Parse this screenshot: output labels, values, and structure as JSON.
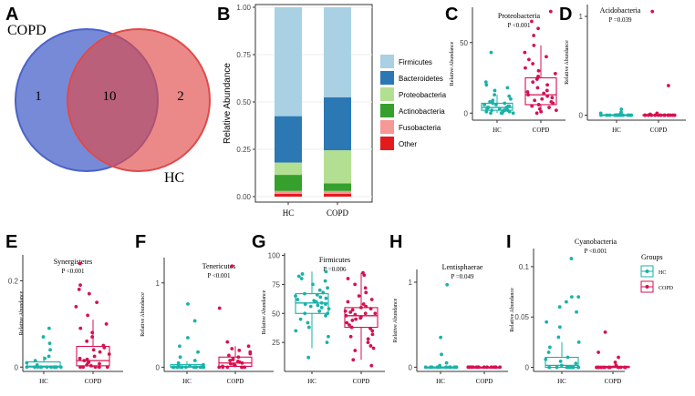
{
  "chart_data": [
    {
      "id": "A",
      "type": "venn",
      "sets": [
        {
          "label": "COPD",
          "color": "#4a63c9"
        },
        {
          "label": "HC",
          "color": "#e04a4a"
        }
      ],
      "counts": {
        "copd_only": "1",
        "shared": "10",
        "hc_only": "2"
      }
    },
    {
      "id": "B",
      "type": "stacked_bar",
      "ylabel": "Relative Abundance",
      "yticks": [
        "0.00",
        "0.25",
        "0.50",
        "0.75",
        "1.00"
      ],
      "ylim": [
        0,
        1
      ],
      "categories": [
        "HC",
        "COPD"
      ],
      "series": [
        {
          "name": "Firmicutes",
          "color": "#a9d0e3",
          "values": [
            0.575,
            0.475
          ]
        },
        {
          "name": "Bacteroidetes",
          "color": "#2c78b5",
          "values": [
            0.245,
            0.28
          ]
        },
        {
          "name": "Proteobacteria",
          "color": "#b3df92",
          "values": [
            0.065,
            0.175
          ]
        },
        {
          "name": "Actinobacteria",
          "color": "#36a02c",
          "values": [
            0.085,
            0.04
          ]
        },
        {
          "name": "Fusobacteria",
          "color": "#f59896",
          "values": [
            0.015,
            0.015
          ]
        },
        {
          "name": "Other",
          "color": "#e31b1c",
          "values": [
            0.015,
            0.015
          ]
        }
      ]
    },
    {
      "id": "C",
      "type": "box_jitter",
      "title": "Proteobacteria",
      "pvalue": "P <0.001",
      "ylabel": "Relative Abundance",
      "yticks": [
        {
          "label": "0",
          "v": 0
        },
        {
          "label": "50",
          "v": 50
        }
      ],
      "ylim": [
        -5,
        75
      ],
      "groups": [
        {
          "name": "HC",
          "box": [
            0,
            2,
            4,
            7,
            13
          ],
          "points": [
            0,
            0,
            0,
            0,
            1,
            1,
            1,
            1,
            2,
            2,
            2,
            2,
            3,
            3,
            3,
            4,
            4,
            4,
            5,
            5,
            6,
            6,
            7,
            7,
            8,
            9,
            10,
            12,
            13,
            16,
            18,
            20,
            22,
            43
          ]
        },
        {
          "name": "COPD",
          "box": [
            0,
            6,
            13,
            25,
            48
          ],
          "points": [
            0,
            1,
            2,
            3,
            4,
            5,
            6,
            7,
            8,
            9,
            10,
            11,
            12,
            13,
            14,
            15,
            16,
            18,
            20,
            22,
            24,
            25,
            26,
            28,
            30,
            32,
            35,
            38,
            40,
            43,
            48,
            55,
            60,
            65,
            72
          ]
        }
      ]
    },
    {
      "id": "D",
      "type": "box_jitter",
      "title": "Acidobacteria",
      "pvalue": "P =0.039",
      "ylabel": "Relative Abundance",
      "yticks": [
        {
          "label": "0",
          "v": 0
        },
        {
          "label": "1",
          "v": 1
        }
      ],
      "ylim": [
        -0.05,
        1.12
      ],
      "groups": [
        {
          "name": "HC",
          "box": [
            0,
            0,
            0,
            0.005,
            0.01
          ],
          "points": [
            0,
            0,
            0,
            0,
            0,
            0,
            0,
            0,
            0,
            0,
            0,
            0,
            0,
            0,
            0,
            0,
            0.01,
            0.02,
            0.03,
            0.06
          ]
        },
        {
          "name": "COPD",
          "box": [
            0,
            0,
            0,
            0.005,
            0.012
          ],
          "points": [
            0,
            0,
            0,
            0,
            0,
            0,
            0,
            0,
            0,
            0,
            0,
            0,
            0,
            0,
            0,
            0,
            0.01,
            0.02,
            0.3,
            1.05
          ]
        }
      ]
    },
    {
      "id": "E",
      "type": "box_jitter",
      "title": "Synergistetes",
      "pvalue": "P <0.001",
      "ylabel": "Relative Abundance",
      "yticks": [
        {
          "label": "0",
          "v": 0
        },
        {
          "label": "0.2",
          "v": 0.2
        }
      ],
      "ylim": [
        -0.01,
        0.26
      ],
      "groups": [
        {
          "name": "HC",
          "box": [
            0,
            0,
            0.002,
            0.012,
            0.025
          ],
          "points": [
            0,
            0,
            0,
            0,
            0,
            0,
            0,
            0,
            0,
            0,
            0,
            0,
            0,
            0.005,
            0.01,
            0.015,
            0.02,
            0.025,
            0.04,
            0.055,
            0.07,
            0.09
          ]
        },
        {
          "name": "COPD",
          "box": [
            0,
            0.003,
            0.015,
            0.048,
            0.11
          ],
          "points": [
            0,
            0,
            0,
            0,
            0,
            0,
            0.003,
            0.005,
            0.008,
            0.01,
            0.012,
            0.015,
            0.018,
            0.02,
            0.025,
            0.03,
            0.035,
            0.04,
            0.045,
            0.05,
            0.06,
            0.07,
            0.08,
            0.09,
            0.1,
            0.12,
            0.14,
            0.15,
            0.17,
            0.18,
            0.19,
            0.24
          ]
        }
      ]
    },
    {
      "id": "F",
      "type": "box_jitter",
      "title": "Tenericutes",
      "pvalue": "P <0.001",
      "ylabel": "Relative Abundance",
      "yticks": [
        {
          "label": "0",
          "v": 0
        },
        {
          "label": "1",
          "v": 1
        }
      ],
      "ylim": [
        -0.05,
        1.3
      ],
      "groups": [
        {
          "name": "HC",
          "box": [
            0,
            0,
            0.005,
            0.03,
            0.07
          ],
          "points": [
            0,
            0,
            0,
            0,
            0,
            0,
            0,
            0,
            0,
            0,
            0,
            0,
            0,
            0,
            0.01,
            0.02,
            0.03,
            0.05,
            0.08,
            0.12,
            0.18,
            0.25,
            0.35,
            0.55,
            0.75
          ]
        },
        {
          "name": "COPD",
          "box": [
            0,
            0.01,
            0.05,
            0.12,
            0.25
          ],
          "points": [
            0,
            0,
            0,
            0,
            0,
            0,
            0.01,
            0.02,
            0.03,
            0.04,
            0.05,
            0.06,
            0.07,
            0.08,
            0.09,
            0.1,
            0.12,
            0.14,
            0.16,
            0.18,
            0.2,
            0.22,
            0.25,
            0.3,
            0.7,
            1.2
          ]
        }
      ]
    },
    {
      "id": "G",
      "type": "box_jitter",
      "title": "Firmicutes",
      "pvalue": "P =0.006",
      "ylabel": "Relative Abundance",
      "yticks": [
        {
          "label": "25",
          "v": 25
        },
        {
          "label": "50",
          "v": 50
        },
        {
          "label": "75",
          "v": 75
        },
        {
          "label": "100",
          "v": 100
        }
      ],
      "ylim": [
        0,
        102
      ],
      "groups": [
        {
          "name": "HC",
          "box": [
            20,
            50,
            59,
            67,
            86
          ],
          "points": [
            12,
            25,
            30,
            35,
            38,
            42,
            45,
            48,
            50,
            50,
            52,
            54,
            55,
            56,
            57,
            58,
            58,
            59,
            60,
            60,
            61,
            62,
            63,
            64,
            65,
            66,
            67,
            68,
            70,
            72,
            75,
            78,
            80,
            82,
            84,
            86
          ]
        },
        {
          "name": "COPD",
          "box": [
            10,
            38,
            48,
            55,
            85
          ],
          "points": [
            5,
            10,
            18,
            20,
            22,
            25,
            28,
            30,
            32,
            35,
            37,
            38,
            40,
            42,
            44,
            45,
            46,
            47,
            48,
            49,
            50,
            50,
            51,
            52,
            53,
            54,
            55,
            56,
            58,
            60,
            62,
            65,
            68,
            72,
            75,
            80,
            83,
            85
          ]
        }
      ]
    },
    {
      "id": "H",
      "type": "box_jitter",
      "title": "Lentisphaerae",
      "pvalue": "P =0.049",
      "ylabel": "Relative Abundance",
      "yticks": [
        {
          "label": "0",
          "v": 0
        },
        {
          "label": "1",
          "v": 1
        }
      ],
      "ylim": [
        -0.05,
        1.15
      ],
      "groups": [
        {
          "name": "HC",
          "box": [
            0,
            0,
            0,
            0,
            0
          ],
          "points": [
            0,
            0,
            0,
            0,
            0,
            0,
            0,
            0,
            0,
            0,
            0,
            0,
            0,
            0,
            0.02,
            0.05,
            0.15,
            0.35,
            0.97
          ]
        },
        {
          "name": "COPD",
          "box": [
            0,
            0,
            0,
            0,
            0
          ],
          "points": [
            0,
            0,
            0,
            0,
            0,
            0,
            0,
            0,
            0,
            0,
            0,
            0,
            0
          ]
        }
      ]
    },
    {
      "id": "I",
      "type": "box_jitter",
      "title": "Cyanobacteria",
      "pvalue": "P <0.001",
      "ylabel": "Relative Abundance",
      "yticks": [
        {
          "label": "0",
          "v": 0
        },
        {
          "label": "0.05",
          "v": 0.05
        },
        {
          "label": "0.1",
          "v": 0.1
        }
      ],
      "ylim": [
        -0.004,
        0.118
      ],
      "groups": [
        {
          "name": "HC",
          "box": [
            0,
            0,
            0.002,
            0.01,
            0.025
          ],
          "points": [
            0,
            0,
            0,
            0,
            0,
            0,
            0,
            0,
            0,
            0,
            0,
            0.002,
            0.004,
            0.006,
            0.008,
            0.01,
            0.015,
            0.02,
            0.025,
            0.03,
            0.04,
            0.045,
            0.055,
            0.06,
            0.065,
            0.07,
            0.07,
            0.108
          ]
        },
        {
          "name": "COPD",
          "box": [
            0,
            0,
            0,
            0.001,
            0.002
          ],
          "points": [
            0,
            0,
            0,
            0,
            0,
            0,
            0,
            0,
            0,
            0,
            0,
            0,
            0.002,
            0.005,
            0.01,
            0.015,
            0.035
          ]
        }
      ]
    }
  ],
  "legend": {
    "title": "Groups",
    "items": [
      {
        "name": "HC",
        "color": "#1ab2a8"
      },
      {
        "name": "COPD",
        "color": "#d6114f"
      }
    ]
  },
  "colors": {
    "hc": "#1ab2a8",
    "copd": "#d6114f"
  }
}
